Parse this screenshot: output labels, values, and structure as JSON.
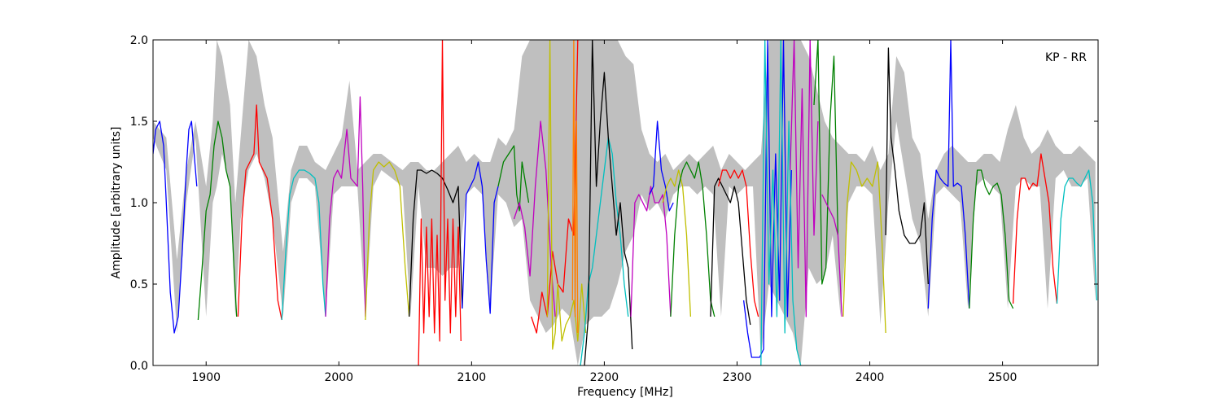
{
  "chart_data": {
    "type": "line",
    "title": "",
    "annotation": "KP - RR",
    "xlabel": "Frequency [MHz]",
    "ylabel": "Amplitude [arbitrary units]",
    "xlim": [
      1860,
      2572
    ],
    "ylim": [
      0.0,
      2.0
    ],
    "xticks": [
      1900,
      2000,
      2100,
      2200,
      2300,
      2400,
      2500
    ],
    "xtick_labels": [
      "1900",
      "2000",
      "2100",
      "2200",
      "2300",
      "2400",
      "2500"
    ],
    "yticks": [
      0.0,
      0.5,
      1.0,
      1.5,
      2.0
    ],
    "ytick_labels": [
      "0.0",
      "0.5",
      "1.0",
      "1.5",
      "2.0"
    ],
    "grid": false,
    "envelope": {
      "color": "#bfbfbf",
      "x": [
        1860,
        1870,
        1878,
        1885,
        1892,
        1900,
        1905,
        1908,
        1912,
        1918,
        1922,
        1926,
        1932,
        1938,
        1944,
        1950,
        1958,
        1964,
        1970,
        1976,
        1982,
        1990,
        1996,
        2002,
        2008,
        2014,
        2020,
        2026,
        2032,
        2040,
        2048,
        2054,
        2060,
        2066,
        2072,
        2078,
        2084,
        2090,
        2096,
        2102,
        2108,
        2114,
        2120,
        2126,
        2132,
        2138,
        2144,
        2150,
        2156,
        2162,
        2168,
        2174,
        2180,
        2186,
        2192,
        2198,
        2204,
        2210,
        2216,
        2222,
        2228,
        2234,
        2240,
        2246,
        2252,
        2258,
        2264,
        2270,
        2276,
        2282,
        2288,
        2294,
        2300,
        2306,
        2312,
        2318,
        2324,
        2330,
        2336,
        2342,
        2348,
        2354,
        2360,
        2366,
        2372,
        2378,
        2384,
        2390,
        2396,
        2402,
        2408,
        2414,
        2420,
        2426,
        2432,
        2438,
        2444,
        2450,
        2456,
        2462,
        2468,
        2474,
        2480,
        2486,
        2492,
        2498,
        2504,
        2510,
        2516,
        2522,
        2528,
        2534,
        2540,
        2546,
        2552,
        2558,
        2564,
        2570
      ],
      "upper": [
        1.5,
        1.4,
        0.65,
        1.2,
        1.5,
        1.1,
        1.5,
        2.0,
        1.9,
        1.6,
        1.0,
        1.4,
        2.0,
        1.9,
        1.6,
        1.4,
        0.7,
        1.2,
        1.35,
        1.35,
        1.25,
        1.2,
        1.3,
        1.4,
        1.75,
        1.2,
        1.25,
        1.3,
        1.3,
        1.25,
        1.2,
        1.25,
        1.25,
        1.2,
        1.2,
        1.25,
        1.3,
        1.35,
        1.25,
        1.3,
        1.25,
        1.25,
        1.4,
        1.35,
        1.45,
        1.9,
        2.0,
        2.0,
        2.0,
        2.0,
        2.0,
        2.0,
        2.0,
        2.0,
        2.0,
        2.0,
        2.0,
        2.0,
        1.9,
        1.85,
        1.45,
        1.3,
        1.25,
        1.3,
        1.2,
        1.25,
        1.3,
        1.25,
        1.3,
        1.35,
        1.2,
        1.3,
        1.25,
        1.2,
        1.25,
        1.3,
        2.0,
        2.0,
        2.0,
        2.0,
        2.0,
        1.9,
        1.7,
        1.5,
        1.4,
        1.35,
        1.3,
        1.3,
        1.25,
        1.35,
        1.2,
        1.3,
        1.9,
        1.8,
        1.4,
        1.3,
        0.9,
        1.2,
        1.3,
        1.35,
        1.3,
        1.25,
        1.25,
        1.3,
        1.3,
        1.25,
        1.45,
        1.6,
        1.4,
        1.3,
        1.35,
        1.45,
        1.35,
        1.3,
        1.3,
        1.35,
        1.3,
        1.25
      ],
      "lower": [
        1.4,
        1.2,
        0.2,
        1.0,
        1.4,
        0.3,
        1.0,
        1.1,
        1.3,
        1.1,
        0.3,
        0.9,
        1.2,
        1.3,
        1.15,
        0.9,
        0.3,
        1.0,
        1.15,
        1.15,
        1.1,
        0.3,
        1.05,
        1.1,
        1.1,
        1.1,
        0.3,
        1.1,
        1.2,
        1.15,
        1.1,
        0.3,
        1.1,
        0.6,
        0.6,
        0.55,
        0.6,
        0.6,
        1.05,
        1.1,
        1.05,
        0.35,
        1.05,
        1.0,
        0.85,
        0.9,
        0.4,
        0.3,
        0.2,
        0.25,
        0.35,
        0.3,
        0.0,
        0.25,
        0.3,
        0.3,
        0.35,
        0.5,
        0.7,
        0.8,
        1.05,
        0.95,
        1.0,
        0.9,
        1.05,
        1.1,
        1.1,
        1.05,
        1.1,
        1.05,
        0.3,
        1.1,
        1.05,
        1.1,
        1.1,
        0.05,
        0.5,
        0.4,
        0.3,
        0.2,
        0.0,
        0.6,
        0.5,
        0.55,
        0.8,
        0.3,
        1.0,
        1.1,
        1.1,
        1.05,
        0.25,
        1.0,
        1.5,
        1.2,
        0.9,
        0.75,
        0.3,
        1.05,
        1.1,
        1.05,
        1.0,
        0.35,
        1.1,
        1.15,
        1.1,
        1.05,
        0.35,
        1.1,
        1.15,
        1.1,
        1.1,
        0.35,
        1.15,
        1.2,
        1.1,
        1.1,
        1.15,
        0.4
      ]
    },
    "series": [
      {
        "color": "#0000ff",
        "x": [
          1860,
          1862,
          1865,
          1868,
          1870,
          1873,
          1876,
          1879,
          1882,
          1885,
          1887,
          1889,
          1891,
          1893
        ],
        "y": [
          1.3,
          1.45,
          1.5,
          1.35,
          1.0,
          0.45,
          0.2,
          0.3,
          0.7,
          1.2,
          1.45,
          1.5,
          1.3,
          1.1
        ]
      },
      {
        "color": "#008000",
        "x": [
          1894,
          1897,
          1900,
          1903,
          1906,
          1909,
          1912,
          1915,
          1918,
          1921,
          1923
        ],
        "y": [
          0.28,
          0.6,
          0.95,
          1.05,
          1.35,
          1.5,
          1.4,
          1.2,
          1.1,
          0.6,
          0.3
        ]
      },
      {
        "color": "#ff0000",
        "x": [
          1924,
          1927,
          1930,
          1933,
          1936,
          1938,
          1940,
          1943,
          1946,
          1950,
          1954,
          1957
        ],
        "y": [
          0.3,
          0.9,
          1.2,
          1.25,
          1.3,
          1.6,
          1.25,
          1.2,
          1.15,
          0.9,
          0.4,
          0.28
        ]
      },
      {
        "color": "#00bfbf",
        "x": [
          1957,
          1960,
          1963,
          1966,
          1970,
          1974,
          1978,
          1982,
          1985,
          1988,
          1990
        ],
        "y": [
          0.28,
          0.7,
          1.05,
          1.15,
          1.2,
          1.2,
          1.18,
          1.15,
          1.0,
          0.5,
          0.3
        ]
      },
      {
        "color": "#bf00bf",
        "x": [
          1990,
          1993,
          1996,
          1999,
          2002,
          2006,
          2009,
          2012,
          2014,
          2016,
          2018,
          2020
        ],
        "y": [
          0.3,
          0.9,
          1.15,
          1.2,
          1.15,
          1.45,
          1.15,
          1.12,
          1.1,
          1.65,
          1.1,
          0.3
        ]
      },
      {
        "color": "#bfbf00",
        "x": [
          2020,
          2023,
          2026,
          2030,
          2034,
          2038,
          2042,
          2046,
          2050,
          2053
        ],
        "y": [
          0.28,
          0.9,
          1.2,
          1.25,
          1.22,
          1.25,
          1.2,
          1.1,
          0.6,
          0.3
        ]
      },
      {
        "color": "#000000",
        "x": [
          2053,
          2056,
          2059,
          2062,
          2066,
          2070,
          2074,
          2078,
          2082,
          2086,
          2090,
          2093
        ],
        "y": [
          0.3,
          0.9,
          1.2,
          1.2,
          1.18,
          1.2,
          1.18,
          1.15,
          1.08,
          1.0,
          1.1,
          0.35
        ]
      },
      {
        "color": "#ff0000",
        "x": [
          2060,
          2062,
          2064,
          2066,
          2068,
          2070,
          2072,
          2074,
          2076,
          2078,
          2080,
          2082,
          2084,
          2086,
          2088,
          2090,
          2092
        ],
        "y": [
          0.0,
          0.9,
          0.2,
          0.85,
          0.3,
          0.9,
          0.2,
          0.8,
          0.15,
          2.0,
          0.4,
          0.9,
          0.2,
          0.9,
          0.3,
          0.85,
          0.15
        ]
      },
      {
        "color": "#0000ff",
        "x": [
          2093,
          2096,
          2099,
          2102,
          2105,
          2108,
          2111,
          2114,
          2117,
          2120
        ],
        "y": [
          0.35,
          1.05,
          1.1,
          1.15,
          1.25,
          1.1,
          0.65,
          0.32,
          1.0,
          1.1
        ]
      },
      {
        "color": "#008000",
        "x": [
          2120,
          2124,
          2128,
          2132,
          2134,
          2136,
          2138,
          2140,
          2143
        ],
        "y": [
          1.1,
          1.25,
          1.3,
          1.35,
          1.05,
          0.95,
          1.25,
          1.15,
          1.0
        ]
      },
      {
        "color": "#bf00bf",
        "x": [
          2132,
          2136,
          2140,
          2144,
          2148,
          2152,
          2156,
          2160,
          2163
        ],
        "y": [
          0.9,
          1.0,
          0.85,
          0.55,
          1.1,
          1.5,
          1.2,
          0.6,
          0.3
        ]
      },
      {
        "color": "#ff0000",
        "x": [
          2145,
          2149,
          2153,
          2157,
          2161,
          2165,
          2169,
          2173,
          2177,
          2180
        ],
        "y": [
          0.3,
          0.2,
          0.45,
          0.3,
          0.7,
          0.5,
          0.45,
          0.9,
          0.8,
          2.0
        ]
      },
      {
        "color": "#bfbf00",
        "x": [
          2157,
          2159,
          2161,
          2163,
          2165,
          2168,
          2171,
          2174,
          2177,
          2180,
          2183,
          2186
        ],
        "y": [
          0.3,
          2.0,
          0.1,
          0.2,
          0.5,
          0.15,
          0.25,
          0.3,
          0.4,
          0.15,
          0.5,
          0.2
        ]
      },
      {
        "color": "#ff8000",
        "x": [
          2176,
          2177,
          2178,
          2179,
          2180
        ],
        "y": [
          0.4,
          2.0,
          0.3,
          1.5,
          0.2
        ]
      },
      {
        "color": "#00bfbf",
        "x": [
          2182,
          2185,
          2188,
          2191,
          2194,
          2197,
          2200,
          2203,
          2206,
          2209,
          2212,
          2215,
          2218
        ],
        "y": [
          0.0,
          0.2,
          0.5,
          0.6,
          0.8,
          1.0,
          1.2,
          1.4,
          1.3,
          1.0,
          0.8,
          0.5,
          0.3
        ]
      },
      {
        "color": "#000000",
        "x": [
          2185,
          2188,
          2191,
          2194,
          2197,
          2200,
          2203,
          2206,
          2209,
          2212,
          2215,
          2218,
          2221
        ],
        "y": [
          0.0,
          0.3,
          2.0,
          1.1,
          1.5,
          1.8,
          1.4,
          1.1,
          0.8,
          1.0,
          0.7,
          0.6,
          0.1
        ]
      },
      {
        "color": "#bf00bf",
        "x": [
          2220,
          2223,
          2226,
          2229,
          2232,
          2235,
          2238,
          2241,
          2244,
          2247,
          2250
        ],
        "y": [
          0.3,
          1.0,
          1.05,
          1.0,
          0.95,
          1.1,
          1.0,
          1.0,
          1.05,
          0.8,
          0.3
        ]
      },
      {
        "color": "#0000ff",
        "x": [
          2234,
          2237,
          2240,
          2243,
          2246,
          2249,
          2252
        ],
        "y": [
          1.05,
          1.1,
          1.5,
          1.2,
          1.1,
          0.95,
          1.0
        ]
      },
      {
        "color": "#bfbf00",
        "x": [
          2244,
          2247,
          2250,
          2253,
          2256,
          2259,
          2262,
          2265
        ],
        "y": [
          1.0,
          1.1,
          1.15,
          1.1,
          1.2,
          1.1,
          0.8,
          0.3
        ]
      },
      {
        "color": "#008000",
        "x": [
          2250,
          2253,
          2256,
          2259,
          2262,
          2265,
          2268,
          2271,
          2274,
          2277,
          2280,
          2283
        ],
        "y": [
          0.3,
          0.8,
          1.1,
          1.2,
          1.25,
          1.2,
          1.15,
          1.25,
          1.1,
          0.8,
          0.4,
          0.3
        ]
      },
      {
        "color": "#000000",
        "x": [
          2280,
          2283,
          2286,
          2289,
          2292,
          2295,
          2298,
          2301,
          2304,
          2307,
          2310
        ],
        "y": [
          0.3,
          1.1,
          1.15,
          1.1,
          1.05,
          1.0,
          1.1,
          1.0,
          0.7,
          0.4,
          0.25
        ]
      },
      {
        "color": "#ff0000",
        "x": [
          2286,
          2289,
          2292,
          2295,
          2298,
          2301,
          2304,
          2307,
          2310,
          2313,
          2316
        ],
        "y": [
          1.1,
          1.2,
          1.2,
          1.15,
          1.2,
          1.15,
          1.2,
          1.1,
          0.7,
          0.4,
          0.3
        ]
      },
      {
        "color": "#0000ff",
        "x": [
          2305,
          2308,
          2311,
          2314,
          2317,
          2320,
          2323,
          2326,
          2329,
          2332,
          2335,
          2338,
          2341
        ],
        "y": [
          0.4,
          0.2,
          0.05,
          0.05,
          0.05,
          0.1,
          2.0,
          0.3,
          1.3,
          0.4,
          2.0,
          0.3,
          1.2
        ]
      },
      {
        "color": "#00bfbf",
        "x": [
          2318,
          2321,
          2324,
          2327,
          2330,
          2333,
          2336,
          2339,
          2342,
          2345,
          2348
        ],
        "y": [
          0.0,
          2.0,
          0.5,
          1.2,
          0.3,
          2.0,
          0.2,
          1.5,
          0.4,
          0.1,
          0.0
        ]
      },
      {
        "color": "#bf00bf",
        "x": [
          2340,
          2343,
          2346,
          2349,
          2352,
          2355,
          2358,
          2361
        ],
        "y": [
          1.2,
          2.0,
          0.6,
          1.7,
          0.3,
          2.0,
          0.8,
          1.5
        ]
      },
      {
        "color": "#008000",
        "x": [
          2358,
          2361,
          2364,
          2367,
          2370,
          2373,
          2376
        ],
        "y": [
          1.6,
          2.0,
          0.5,
          0.6,
          1.5,
          1.9,
          0.8
        ]
      },
      {
        "color": "#bf00bf",
        "x": [
          2364,
          2367,
          2370,
          2373,
          2376,
          2379
        ],
        "y": [
          1.05,
          1.0,
          0.95,
          0.9,
          0.8,
          0.3
        ]
      },
      {
        "color": "#bfbf00",
        "x": [
          2380,
          2383,
          2386,
          2390,
          2394,
          2398,
          2402,
          2406,
          2409,
          2412
        ],
        "y": [
          0.3,
          1.0,
          1.25,
          1.2,
          1.1,
          1.15,
          1.1,
          1.25,
          0.8,
          0.2
        ]
      },
      {
        "color": "#000000",
        "x": [
          2412,
          2414,
          2416,
          2419,
          2422,
          2426,
          2430,
          2434,
          2438,
          2441,
          2444
        ],
        "y": [
          0.8,
          1.95,
          1.4,
          1.2,
          0.95,
          0.8,
          0.75,
          0.75,
          0.8,
          1.0,
          0.5
        ]
      },
      {
        "color": "#0000ff",
        "x": [
          2444,
          2447,
          2450,
          2453,
          2456,
          2459,
          2461,
          2463,
          2466,
          2469,
          2472,
          2475
        ],
        "y": [
          0.35,
          0.9,
          1.2,
          1.15,
          1.12,
          1.1,
          2.0,
          1.1,
          1.12,
          1.1,
          0.8,
          0.35
        ]
      },
      {
        "color": "#008000",
        "x": [
          2475,
          2478,
          2481,
          2484,
          2487,
          2490,
          2493,
          2496,
          2499,
          2502,
          2505,
          2508
        ],
        "y": [
          0.35,
          0.9,
          1.2,
          1.2,
          1.1,
          1.05,
          1.1,
          1.12,
          1.05,
          0.8,
          0.4,
          0.35
        ]
      },
      {
        "color": "#ff0000",
        "x": [
          2508,
          2511,
          2514,
          2517,
          2520,
          2523,
          2526,
          2529,
          2532,
          2535,
          2538,
          2541
        ],
        "y": [
          0.38,
          0.9,
          1.15,
          1.15,
          1.08,
          1.12,
          1.1,
          1.3,
          1.15,
          1.0,
          0.6,
          0.38
        ]
      },
      {
        "color": "#00bfbf",
        "x": [
          2541,
          2544,
          2547,
          2550,
          2553,
          2556,
          2559,
          2562,
          2565,
          2568,
          2571
        ],
        "y": [
          0.38,
          0.9,
          1.1,
          1.15,
          1.15,
          1.12,
          1.1,
          1.15,
          1.2,
          1.0,
          0.4
        ]
      }
    ]
  }
}
